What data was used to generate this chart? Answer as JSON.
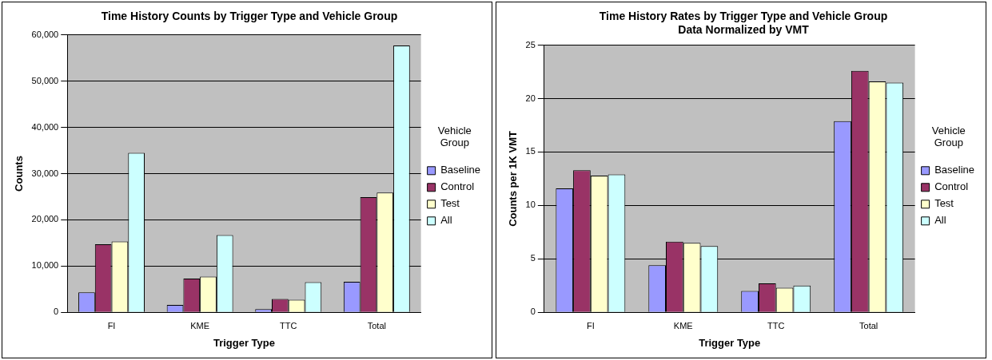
{
  "chart_data": [
    {
      "type": "bar",
      "title": "Time History Counts by Trigger Type and Vehicle Group",
      "xlabel": "Trigger Type",
      "ylabel": "Counts",
      "legend_title": "Vehicle Group",
      "categories": [
        "FI",
        "KME",
        "TTC",
        "Total"
      ],
      "series": [
        {
          "name": "Baseline",
          "color": "#9999ff",
          "values": [
            4300,
            1600,
            700,
            6600
          ]
        },
        {
          "name": "Control",
          "color": "#993366",
          "values": [
            14700,
            7300,
            2900,
            24900
          ]
        },
        {
          "name": "Test",
          "color": "#ffffcc",
          "values": [
            15300,
            7700,
            2700,
            25900
          ]
        },
        {
          "name": "All",
          "color": "#ccffff",
          "values": [
            34500,
            16700,
            6500,
            57700
          ]
        }
      ],
      "ylim": [
        0,
        60000
      ],
      "yticks": [
        0,
        {
          "value": 10000,
          "label": "10,000"
        },
        {
          "value": 20000,
          "label": "20,000"
        },
        {
          "value": 30000,
          "label": "30,000"
        },
        {
          "value": 40000,
          "label": "40,000"
        },
        {
          "value": 50000,
          "label": "50,000"
        },
        {
          "value": 60000,
          "label": "60,000"
        }
      ],
      "grid": "y",
      "legend": "right"
    },
    {
      "type": "bar",
      "title": "Time History Rates by Trigger Type and Vehicle Group",
      "subtitle": "Data Normalized by VMT",
      "xlabel": "Trigger Type",
      "ylabel": "Counts per 1K VMT",
      "legend_title": "Vehicle Group",
      "categories": [
        "FI",
        "KME",
        "TTC",
        "Total"
      ],
      "series": [
        {
          "name": "Baseline",
          "color": "#9999ff",
          "values": [
            11.6,
            4.4,
            2.0,
            17.9
          ]
        },
        {
          "name": "Control",
          "color": "#993366",
          "values": [
            13.3,
            6.6,
            2.7,
            22.6
          ]
        },
        {
          "name": "Test",
          "color": "#ffffcc",
          "values": [
            12.8,
            6.5,
            2.3,
            21.6
          ]
        },
        {
          "name": "All",
          "color": "#ccffff",
          "values": [
            12.9,
            6.2,
            2.5,
            21.5
          ]
        }
      ],
      "ylim": [
        0,
        25
      ],
      "yticks": [
        0,
        5,
        10,
        15,
        20,
        25
      ],
      "grid": "y",
      "legend": "right"
    }
  ]
}
